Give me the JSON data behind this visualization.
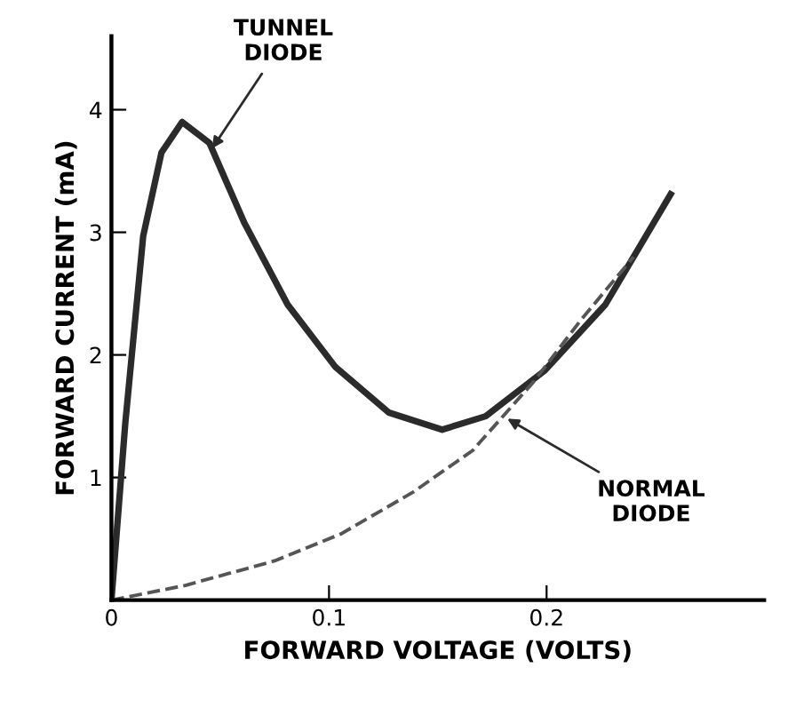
{
  "chart_data": {
    "type": "line",
    "xlabel": "FORWARD VOLTAGE (VOLTS)",
    "ylabel": "FORWARD CURRENT (mA)",
    "xlim": [
      0,
      0.3
    ],
    "ylim": [
      0,
      4.6
    ],
    "xticks": [
      0,
      0.1,
      0.2
    ],
    "yticks": [
      1,
      2,
      3,
      4
    ],
    "grid": false,
    "legend": false,
    "marker": "none",
    "series": [
      {
        "color": "#2b2b2b",
        "line_style": "solid",
        "x": [
          0,
          0.0064,
          0.0146,
          0.023,
          0.0325,
          0.045,
          0.061,
          0.081,
          0.103,
          0.1275,
          0.152,
          0.172,
          0.199,
          0.227,
          0.257
        ],
        "values": [
          0,
          1.45,
          2.97,
          3.65,
          3.9,
          3.73,
          3.08,
          2.41,
          1.9,
          1.53,
          1.39,
          1.5,
          1.87,
          2.41,
          3.31
        ]
      },
      {
        "color": "#555555",
        "line_style": "dashed",
        "x": [
          0,
          0.034,
          0.075,
          0.1055,
          0.1386,
          0.166,
          0.194,
          0.216,
          0.24
        ],
        "values": [
          0,
          0.12,
          0.32,
          0.54,
          0.88,
          1.22,
          1.78,
          2.29,
          2.8
        ]
      }
    ],
    "annotations": [
      {
        "text": "TUNNEL\nDIODE",
        "x": 0.045,
        "y": 3.65
      },
      {
        "text": "NORMAL\nDIODE",
        "x": 0.18,
        "y": 1.5
      }
    ]
  }
}
